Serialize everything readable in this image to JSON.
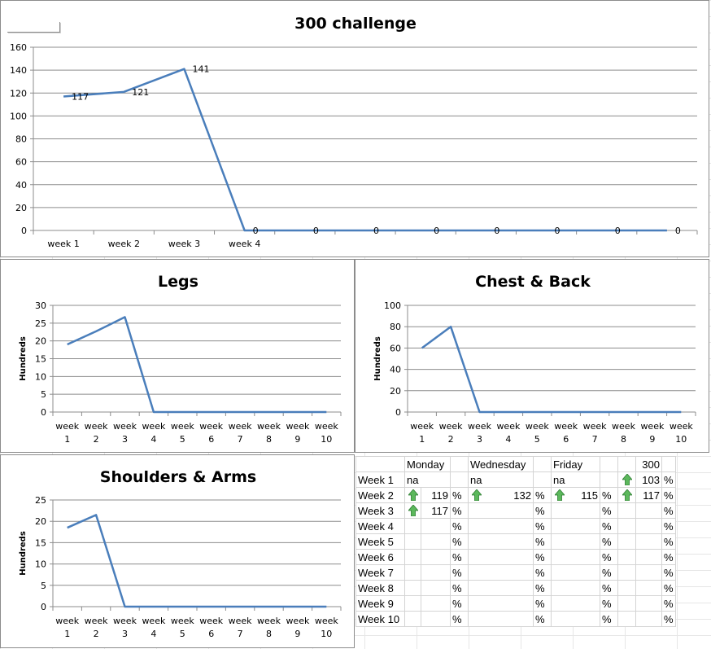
{
  "chart_data": [
    {
      "type": "line",
      "title": "300 challenge",
      "categories": [
        "week 1",
        "week 2",
        "week 3",
        "week 4",
        "",
        "",
        "",
        "",
        "",
        "",
        ""
      ],
      "values": [
        117,
        121,
        141,
        0,
        0,
        0,
        0,
        0,
        0,
        0,
        0
      ],
      "data_labels": [
        "117",
        "121",
        "141",
        "0",
        "0",
        "0",
        "0",
        "0",
        "0",
        "0",
        "0"
      ],
      "ylim": [
        0,
        160
      ],
      "yticks": [
        0,
        20,
        40,
        60,
        80,
        100,
        120,
        140,
        160
      ],
      "ylabel": "",
      "grid": true,
      "line_color": "#4a7ebb"
    },
    {
      "type": "line",
      "title": "Legs",
      "categories": [
        "week 1",
        "week 2",
        "week 3",
        "week 4",
        "week 5",
        "week 6",
        "week 7",
        "week 8",
        "week 9",
        "week 10"
      ],
      "values": [
        19,
        22.7,
        26.7,
        0,
        0,
        0,
        0,
        0,
        0,
        0
      ],
      "ylim": [
        0,
        30
      ],
      "yticks": [
        0,
        5,
        10,
        15,
        20,
        25,
        30
      ],
      "ylabel": "Hundreds",
      "grid": true,
      "line_color": "#4a7ebb"
    },
    {
      "type": "line",
      "title": "Chest & Back",
      "categories": [
        "week 1",
        "week 2",
        "week 3",
        "week 4",
        "week 5",
        "week 6",
        "week 7",
        "week 8",
        "week 9",
        "week 10"
      ],
      "values": [
        60,
        80,
        0,
        0,
        0,
        0,
        0,
        0,
        0,
        0
      ],
      "ylim": [
        0,
        100
      ],
      "yticks": [
        0,
        20,
        40,
        60,
        80,
        100
      ],
      "ylabel": "Hundreds",
      "grid": true,
      "line_color": "#4a7ebb"
    },
    {
      "type": "line",
      "title": "Shoulders & Arms",
      "categories": [
        "week 1",
        "week 2",
        "week 3",
        "week 4",
        "week 5",
        "week 6",
        "week 7",
        "week 8",
        "week 9",
        "week 10"
      ],
      "values": [
        18.5,
        21.5,
        0,
        0,
        0,
        0,
        0,
        0,
        0,
        0
      ],
      "ylim": [
        0,
        25
      ],
      "yticks": [
        0,
        5,
        10,
        15,
        20,
        25
      ],
      "ylabel": "Hundreds",
      "grid": true,
      "line_color": "#4a7ebb"
    }
  ],
  "table": {
    "headers": [
      "",
      "Monday",
      "",
      "Wednesday",
      "",
      "Friday",
      "",
      "",
      "300",
      ""
    ],
    "rows": [
      {
        "label": "Week 1",
        "mon": {
          "arrow": false,
          "val": "na",
          "pct": ""
        },
        "wed": {
          "arrow": false,
          "val": "na",
          "pct": ""
        },
        "fri": {
          "arrow": false,
          "val": "na",
          "pct": ""
        },
        "t300": {
          "arrow": true,
          "val": "103",
          "pct": "%"
        }
      },
      {
        "label": "Week 2",
        "mon": {
          "arrow": true,
          "val": "119",
          "pct": "%"
        },
        "wed": {
          "arrow": true,
          "val": "132",
          "pct": "%"
        },
        "fri": {
          "arrow": true,
          "val": "115",
          "pct": "%"
        },
        "t300": {
          "arrow": true,
          "val": "117",
          "pct": "%"
        }
      },
      {
        "label": "Week 3",
        "mon": {
          "arrow": true,
          "val": "117",
          "pct": "%"
        },
        "wed": {
          "arrow": false,
          "val": "",
          "pct": "%"
        },
        "fri": {
          "arrow": false,
          "val": "",
          "pct": "%"
        },
        "t300": {
          "arrow": false,
          "val": "",
          "pct": "%"
        }
      },
      {
        "label": "Week 4",
        "mon": {
          "arrow": false,
          "val": "",
          "pct": "%"
        },
        "wed": {
          "arrow": false,
          "val": "",
          "pct": "%"
        },
        "fri": {
          "arrow": false,
          "val": "",
          "pct": "%"
        },
        "t300": {
          "arrow": false,
          "val": "",
          "pct": "%"
        }
      },
      {
        "label": "Week 5",
        "mon": {
          "arrow": false,
          "val": "",
          "pct": "%"
        },
        "wed": {
          "arrow": false,
          "val": "",
          "pct": "%"
        },
        "fri": {
          "arrow": false,
          "val": "",
          "pct": "%"
        },
        "t300": {
          "arrow": false,
          "val": "",
          "pct": "%"
        }
      },
      {
        "label": "Week 6",
        "mon": {
          "arrow": false,
          "val": "",
          "pct": "%"
        },
        "wed": {
          "arrow": false,
          "val": "",
          "pct": "%"
        },
        "fri": {
          "arrow": false,
          "val": "",
          "pct": "%"
        },
        "t300": {
          "arrow": false,
          "val": "",
          "pct": "%"
        }
      },
      {
        "label": "Week 7",
        "mon": {
          "arrow": false,
          "val": "",
          "pct": "%"
        },
        "wed": {
          "arrow": false,
          "val": "",
          "pct": "%"
        },
        "fri": {
          "arrow": false,
          "val": "",
          "pct": "%"
        },
        "t300": {
          "arrow": false,
          "val": "",
          "pct": "%"
        }
      },
      {
        "label": "Week 8",
        "mon": {
          "arrow": false,
          "val": "",
          "pct": "%"
        },
        "wed": {
          "arrow": false,
          "val": "",
          "pct": "%"
        },
        "fri": {
          "arrow": false,
          "val": "",
          "pct": "%"
        },
        "t300": {
          "arrow": false,
          "val": "",
          "pct": "%"
        }
      },
      {
        "label": "Week 9",
        "mon": {
          "arrow": false,
          "val": "",
          "pct": "%"
        },
        "wed": {
          "arrow": false,
          "val": "",
          "pct": "%"
        },
        "fri": {
          "arrow": false,
          "val": "",
          "pct": "%"
        },
        "t300": {
          "arrow": false,
          "val": "",
          "pct": "%"
        }
      },
      {
        "label": "Week 10",
        "mon": {
          "arrow": false,
          "val": "",
          "pct": "%"
        },
        "wed": {
          "arrow": false,
          "val": "",
          "pct": "%"
        },
        "fri": {
          "arrow": false,
          "val": "",
          "pct": "%"
        },
        "t300": {
          "arrow": false,
          "val": "",
          "pct": "%"
        }
      }
    ],
    "arrow_icon": "green-up-arrow-icon",
    "arrow_color": "#5cb85c"
  }
}
